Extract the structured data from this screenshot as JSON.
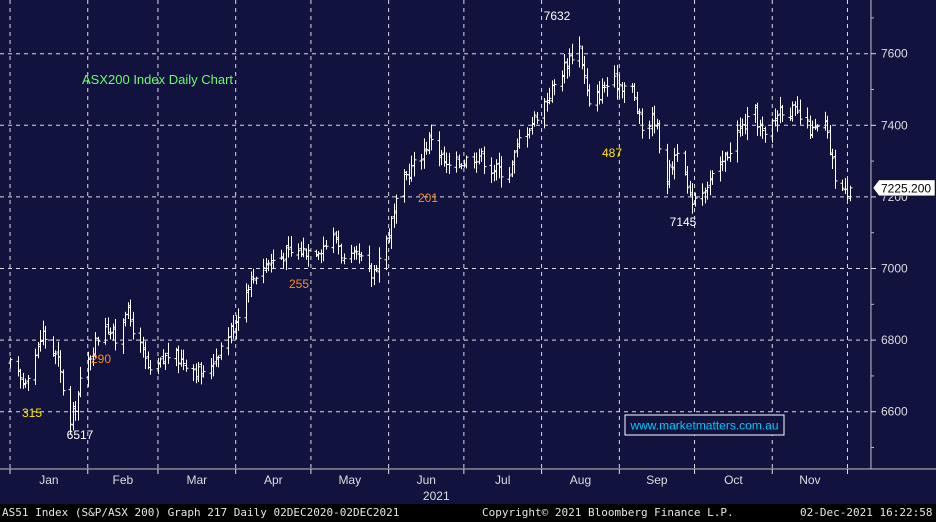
{
  "colors": {
    "plot_bg": "#12123f",
    "axis_bg": "#12123f",
    "grid": "#ffffff",
    "bars": "#ffffff",
    "title": "#66ff66",
    "annot_yellow": "#ffe600",
    "annot_orange": "#ff8c1a",
    "annot_white": "#ffffff",
    "watermark": "#00c8ff"
  },
  "chart_data": {
    "type": "ohlc",
    "title": "ASX200 Index Daily Chart",
    "ylim": [
      6440,
      7750
    ],
    "y_ticks": [
      6600,
      6800,
      7000,
      7200,
      7400,
      7600
    ],
    "y_tick_labels": [
      "6600",
      "6800",
      "7000",
      "7200",
      "7400",
      "7600"
    ],
    "months": [
      "Jan",
      "Feb",
      "Mar",
      "Apr",
      "May",
      "Jun",
      "Jul",
      "Aug",
      "Sep",
      "Oct",
      "Nov"
    ],
    "year_label": "2021",
    "last_value_label": "7225.200",
    "last_value": 7225.2,
    "grid": true,
    "annotations": [
      {
        "text": "7632",
        "value": 7632,
        "kind": "price",
        "color": "annot_white"
      },
      {
        "text": "6517",
        "value": 6517,
        "kind": "price",
        "color": "annot_white"
      },
      {
        "text": "7145",
        "value": 7145,
        "kind": "price",
        "color": "annot_white"
      },
      {
        "text": "315",
        "value": 315,
        "kind": "move",
        "color": "annot_yellow"
      },
      {
        "text": "290",
        "value": 290,
        "kind": "move",
        "color": "annot_orange"
      },
      {
        "text": "255",
        "value": 255,
        "kind": "move",
        "color": "annot_orange"
      },
      {
        "text": "201",
        "value": 201,
        "kind": "move",
        "color": "annot_orange"
      },
      {
        "text": "487",
        "value": 487,
        "kind": "move",
        "color": "annot_yellow"
      }
    ],
    "anchors": [
      [
        "2021-01-01",
        6730
      ],
      [
        "2021-01-06",
        6680
      ],
      [
        "2021-01-11",
        6760
      ],
      [
        "2021-01-14",
        6820
      ],
      [
        "2021-01-20",
        6740
      ],
      [
        "2021-01-25",
        6560
      ],
      [
        "2021-01-29",
        6680
      ],
      [
        "2021-02-03",
        6780
      ],
      [
        "2021-02-08",
        6850
      ],
      [
        "2021-02-12",
        6800
      ],
      [
        "2021-02-16",
        6890
      ],
      [
        "2021-02-22",
        6780
      ],
      [
        "2021-02-26",
        6700
      ],
      [
        "2021-03-05",
        6760
      ],
      [
        "2021-03-12",
        6740
      ],
      [
        "2021-03-19",
        6700
      ],
      [
        "2021-03-25",
        6770
      ],
      [
        "2021-03-31",
        6840
      ],
      [
        "2021-04-06",
        6960
      ],
      [
        "2021-04-12",
        7010
      ],
      [
        "2021-04-20",
        7040
      ],
      [
        "2021-04-28",
        7050
      ],
      [
        "2021-05-05",
        7060
      ],
      [
        "2021-05-11",
        7090
      ],
      [
        "2021-05-14",
        7020
      ],
      [
        "2021-05-20",
        7030
      ],
      [
        "2021-05-25",
        6980
      ],
      [
        "2021-05-31",
        7080
      ],
      [
        "2021-06-07",
        7250
      ],
      [
        "2021-06-14",
        7320
      ],
      [
        "2021-06-18",
        7370
      ],
      [
        "2021-06-24",
        7280
      ],
      [
        "2021-06-30",
        7300
      ],
      [
        "2021-07-07",
        7320
      ],
      [
        "2021-07-12",
        7280
      ],
      [
        "2021-07-19",
        7270
      ],
      [
        "2021-07-23",
        7360
      ],
      [
        "2021-07-29",
        7420
      ],
      [
        "2021-08-05",
        7500
      ],
      [
        "2021-08-12",
        7590
      ],
      [
        "2021-08-16",
        7620
      ],
      [
        "2021-08-20",
        7450
      ],
      [
        "2021-08-26",
        7510
      ],
      [
        "2021-08-31",
        7520
      ],
      [
        "2021-09-06",
        7500
      ],
      [
        "2021-09-10",
        7390
      ],
      [
        "2021-09-15",
        7420
      ],
      [
        "2021-09-20",
        7250
      ],
      [
        "2021-09-24",
        7340
      ],
      [
        "2021-09-29",
        7190
      ],
      [
        "2021-10-05",
        7230
      ],
      [
        "2021-10-11",
        7280
      ],
      [
        "2021-10-18",
        7380
      ],
      [
        "2021-10-25",
        7430
      ],
      [
        "2021-10-29",
        7360
      ],
      [
        "2021-11-04",
        7450
      ],
      [
        "2021-11-09",
        7440
      ],
      [
        "2021-11-12",
        7420
      ],
      [
        "2021-11-17",
        7380
      ],
      [
        "2021-11-22",
        7400
      ],
      [
        "2021-11-26",
        7260
      ],
      [
        "2021-11-30",
        7210
      ],
      [
        "2021-12-02",
        7225
      ]
    ]
  },
  "footer": {
    "left": "AS51 Index (S&P/ASX 200) Graph 217  Daily 02DEC2020-02DEC2021",
    "center": "Copyright© 2021 Bloomberg Finance L.P.",
    "right": "02-Dec-2021 16:22:58"
  },
  "watermark": "www.marketmatters.com.au"
}
